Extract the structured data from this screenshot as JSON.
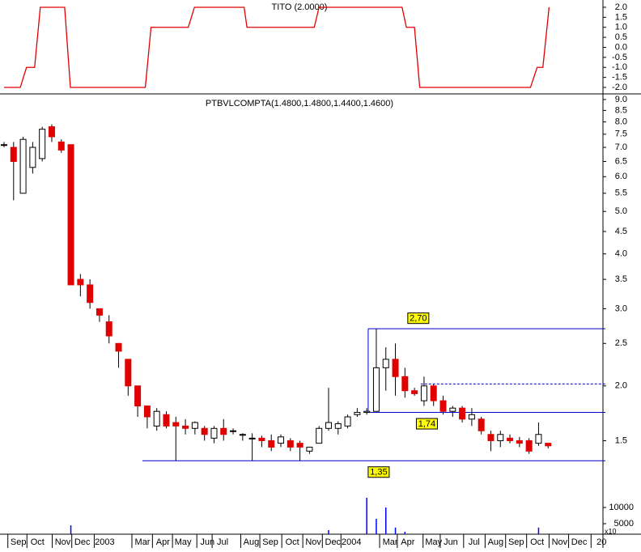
{
  "chart_data": [
    {
      "type": "line",
      "title": "TITO (2.0000)",
      "x": [
        0,
        3.4,
        4.7,
        6.4,
        7.6,
        12.7,
        13.9,
        29.6,
        30.8,
        38.6,
        39.9,
        50.3,
        50.9,
        65,
        66,
        83.4,
        84.3,
        86,
        87.1,
        110.3,
        111.7,
        112.9,
        114.2
      ],
      "series": [
        {
          "color": "#e00000",
          "values": [
            -2,
            -2,
            -1,
            -1,
            2,
            2,
            -2,
            -2,
            1,
            1,
            2,
            2,
            1,
            1,
            2,
            2,
            1,
            1,
            -2,
            -2,
            -1,
            -1,
            2
          ]
        }
      ],
      "xlim": [
        0,
        126
      ],
      "ylim": [
        -2.1,
        2.1
      ],
      "yticks": [
        {
          "value": 2,
          "label": "2.0"
        },
        1.5,
        {
          "value": 1,
          "label": "1.0"
        },
        0.5,
        {
          "value": 0,
          "label": "0.0"
        },
        -0.5,
        {
          "value": -1,
          "label": "-1.0"
        },
        -1.5,
        {
          "value": -2,
          "label": "-2.0"
        }
      ]
    },
    {
      "type": "candlestick",
      "title": "PTBVLCOMPTA(1.4800,1.4800,1.4400,1.4600)",
      "x": [
        0,
        2,
        4,
        6,
        8,
        10,
        12,
        14,
        16,
        18,
        20,
        22,
        24,
        26,
        28,
        30,
        32,
        34,
        36,
        38,
        40,
        42,
        44,
        46,
        48,
        50,
        52,
        54,
        56,
        58,
        60,
        62,
        64,
        66,
        68,
        70,
        72,
        74,
        76,
        78,
        80,
        82,
        84,
        86,
        88,
        90,
        92,
        94,
        96,
        98,
        100,
        102,
        104,
        106,
        108,
        110,
        112,
        114
      ],
      "open": [
        7.1,
        7.0,
        5.5,
        6.3,
        6.6,
        7.8,
        7.2,
        7.1,
        3.5,
        3.4,
        3.0,
        2.8,
        2.5,
        2.3,
        2.0,
        1.8,
        1.62,
        1.72,
        1.65,
        1.62,
        1.6,
        1.6,
        1.52,
        1.6,
        1.58,
        1.55,
        1.52,
        1.52,
        1.5,
        1.48,
        1.5,
        1.48,
        1.42,
        1.48,
        1.6,
        1.6,
        1.62,
        1.72,
        1.74,
        1.75,
        2.2,
        2.3,
        2.1,
        1.95,
        1.85,
        2.0,
        1.85,
        1.75,
        1.78,
        1.68,
        1.68,
        1.55,
        1.5,
        1.52,
        1.5,
        1.5,
        1.48,
        1.48
      ],
      "high": [
        7.2,
        7.2,
        7.4,
        7.2,
        7.8,
        7.9,
        7.3,
        7.1,
        3.6,
        3.5,
        3.0,
        2.9,
        2.5,
        2.3,
        2.0,
        1.8,
        1.78,
        1.75,
        1.7,
        1.68,
        1.66,
        1.62,
        1.62,
        1.68,
        1.6,
        1.56,
        1.56,
        1.54,
        1.55,
        1.55,
        1.52,
        1.5,
        1.45,
        1.62,
        1.98,
        1.66,
        1.72,
        1.78,
        1.78,
        2.7,
        2.45,
        2.5,
        2.2,
        1.98,
        2.1,
        2.02,
        1.9,
        1.8,
        1.8,
        1.78,
        1.7,
        1.58,
        1.58,
        1.55,
        1.53,
        1.52,
        1.65,
        1.48
      ],
      "low": [
        7.0,
        5.3,
        5.5,
        6.1,
        6.5,
        7.2,
        6.8,
        3.4,
        3.2,
        3.0,
        2.8,
        2.5,
        2.2,
        1.9,
        1.7,
        1.6,
        1.58,
        1.6,
        1.35,
        1.55,
        1.55,
        1.5,
        1.48,
        1.5,
        1.55,
        1.5,
        1.35,
        1.45,
        1.42,
        1.45,
        1.42,
        1.35,
        1.4,
        1.48,
        1.58,
        1.55,
        1.6,
        1.7,
        1.72,
        1.75,
        1.95,
        1.9,
        1.88,
        1.9,
        1.8,
        1.8,
        1.72,
        1.7,
        1.65,
        1.62,
        1.55,
        1.42,
        1.45,
        1.48,
        1.45,
        1.4,
        1.46,
        1.44
      ],
      "close": [
        7.1,
        6.5,
        7.3,
        7.0,
        7.7,
        7.4,
        6.9,
        3.4,
        3.4,
        3.1,
        2.9,
        2.6,
        2.4,
        2.0,
        1.8,
        1.7,
        1.75,
        1.62,
        1.62,
        1.6,
        1.65,
        1.55,
        1.6,
        1.55,
        1.58,
        1.55,
        1.52,
        1.5,
        1.45,
        1.53,
        1.45,
        1.45,
        1.45,
        1.6,
        1.65,
        1.64,
        1.7,
        1.74,
        1.75,
        2.2,
        2.3,
        2.1,
        1.95,
        1.92,
        2.0,
        1.85,
        1.75,
        1.78,
        1.68,
        1.72,
        1.58,
        1.5,
        1.55,
        1.5,
        1.48,
        1.42,
        1.55,
        1.46
      ],
      "up_color": "#ffffff",
      "down_color": "#e00000",
      "log_scale": true,
      "xlim": [
        0,
        126
      ],
      "ylim": [
        1.21,
        9.23
      ],
      "yticks": [
        {
          "value": 9,
          "label": "9.0"
        },
        8.5,
        {
          "value": 8,
          "label": "8.0"
        },
        7.5,
        {
          "value": 7,
          "label": "7.0"
        },
        6.5,
        {
          "value": 6,
          "label": "6.0"
        },
        5.5,
        {
          "value": 5,
          "label": "5.0"
        },
        4.5,
        {
          "value": 4,
          "label": "4.0"
        },
        3.5,
        {
          "value": 3,
          "label": "3.0"
        },
        2.5,
        {
          "value": 2,
          "label": "2.0"
        },
        1.5
      ],
      "level_color": "#0000cc",
      "levels": [
        {
          "value": 2.7,
          "label": "2,70",
          "x": [
            76.3,
            126
          ],
          "label_x": 86.8,
          "label_side": "above",
          "connect_to": 1.74
        },
        {
          "value": 1.74,
          "label": "1,74",
          "x": [
            75.4,
            126
          ],
          "label_x": 88.6,
          "label_side": "below"
        },
        {
          "value": 1.35,
          "label": "1,35",
          "x": [
            29,
            126
          ],
          "label_x": 78.5,
          "label_side": "below"
        },
        {
          "value": 2.02,
          "x": [
            87.3,
            126
          ],
          "style": "dotted"
        }
      ]
    },
    {
      "type": "bar",
      "x": [
        0,
        2,
        4,
        6,
        8,
        10,
        12,
        14,
        16,
        18,
        20,
        22,
        24,
        26,
        28,
        30,
        32,
        34,
        36,
        38,
        40,
        42,
        44,
        46,
        48,
        50,
        52,
        54,
        56,
        58,
        60,
        62,
        64,
        66,
        68,
        70,
        72,
        74,
        76,
        78,
        80,
        82,
        84,
        86,
        88,
        90,
        92,
        94,
        96,
        98,
        100,
        102,
        104,
        106,
        108,
        110,
        112,
        114
      ],
      "values": [
        1000,
        1000,
        1000,
        1000,
        1000,
        1000,
        1000,
        4500,
        1000,
        1000,
        1000,
        1000,
        1000,
        1000,
        1000,
        1000,
        1000,
        1000,
        1000,
        1000,
        1000,
        1000,
        1000,
        1000,
        1000,
        1000,
        1000,
        1000,
        1000,
        1000,
        1000,
        1000,
        1000,
        1000,
        3000,
        1000,
        1000,
        1000,
        13000,
        6500,
        10000,
        3800,
        2500,
        1000,
        1000,
        1000,
        1000,
        1000,
        1000,
        1000,
        1000,
        1000,
        1000,
        1000,
        1000,
        1000,
        3800,
        1000
      ],
      "color": "#0000ff",
      "xlim": [
        0,
        126
      ],
      "ylim": [
        1750,
        17250
      ],
      "yticks": [
        10000,
        5000
      ],
      "multiplier_label": "x10",
      "xticks": [
        {
          "value": 3,
          "label": "Sep"
        },
        {
          "value": 7,
          "label": "Oct"
        },
        {
          "value": 12.3,
          "label": "Nov"
        },
        {
          "value": 16.4,
          "label": "Dec"
        },
        {
          "value": 21.1,
          "label": "2003"
        },
        {
          "value": 29,
          "label": "Mar"
        },
        {
          "value": 33.3,
          "label": "Apr"
        },
        {
          "value": 37.5,
          "label": "May"
        },
        {
          "value": 42.6,
          "label": "Jun"
        },
        {
          "value": 45.8,
          "label": "Jul"
        },
        {
          "value": 51.8,
          "label": "Aug"
        },
        {
          "value": 55.8,
          "label": "Sep"
        },
        {
          "value": 60.4,
          "label": "Oct"
        },
        {
          "value": 64.8,
          "label": "Nov"
        },
        {
          "value": 68.9,
          "label": "Dec"
        },
        {
          "value": 72.8,
          "label": "2004"
        },
        {
          "value": 80.9,
          "label": "Mar"
        },
        {
          "value": 84.6,
          "label": "Apr"
        },
        {
          "value": 90,
          "label": "May"
        },
        {
          "value": 93.6,
          "label": "Jun"
        },
        {
          "value": 98.5,
          "label": "Jul"
        },
        {
          "value": 103,
          "label": "Aug"
        },
        {
          "value": 107.3,
          "label": "Sep"
        },
        {
          "value": 111.7,
          "label": "Oct"
        },
        {
          "value": 116.4,
          "label": "Nov"
        },
        {
          "value": 120.5,
          "label": "Dec"
        },
        {
          "value": 125.2,
          "label": "20"
        }
      ]
    }
  ]
}
